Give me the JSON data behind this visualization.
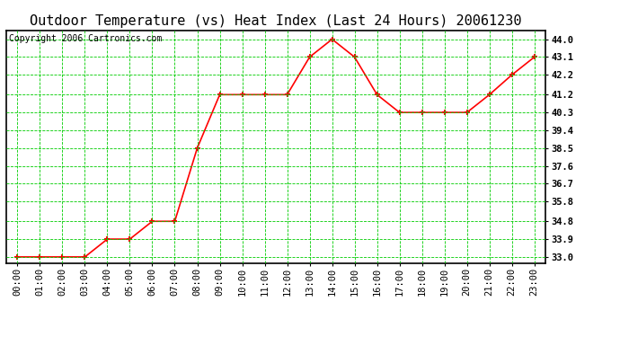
{
  "title": "Outdoor Temperature (vs) Heat Index (Last 24 Hours) 20061230",
  "copyright": "Copyright 2006 Cartronics.com",
  "hours": [
    "00:00",
    "01:00",
    "02:00",
    "03:00",
    "04:00",
    "05:00",
    "06:00",
    "07:00",
    "08:00",
    "09:00",
    "10:00",
    "11:00",
    "12:00",
    "13:00",
    "14:00",
    "15:00",
    "16:00",
    "17:00",
    "18:00",
    "19:00",
    "20:00",
    "21:00",
    "22:00",
    "23:00"
  ],
  "values": [
    33.0,
    33.0,
    33.0,
    33.0,
    33.9,
    33.9,
    34.8,
    34.8,
    38.5,
    41.2,
    41.2,
    41.2,
    41.2,
    43.1,
    44.0,
    43.1,
    41.2,
    40.3,
    40.3,
    40.3,
    40.3,
    41.2,
    42.2,
    43.1
  ],
  "line_color": "#ff0000",
  "marker_color": "#ff0000",
  "background_color": "#ffffff",
  "grid_color": "#00cc00",
  "title_color": "#000000",
  "copyright_color": "#000000",
  "yticks": [
    33.0,
    33.9,
    34.8,
    35.8,
    36.7,
    37.6,
    38.5,
    39.4,
    40.3,
    41.2,
    42.2,
    43.1,
    44.0
  ],
  "ymin": 32.7,
  "ymax": 44.45,
  "title_fontsize": 11,
  "copyright_fontsize": 7,
  "tick_fontsize": 7.5
}
